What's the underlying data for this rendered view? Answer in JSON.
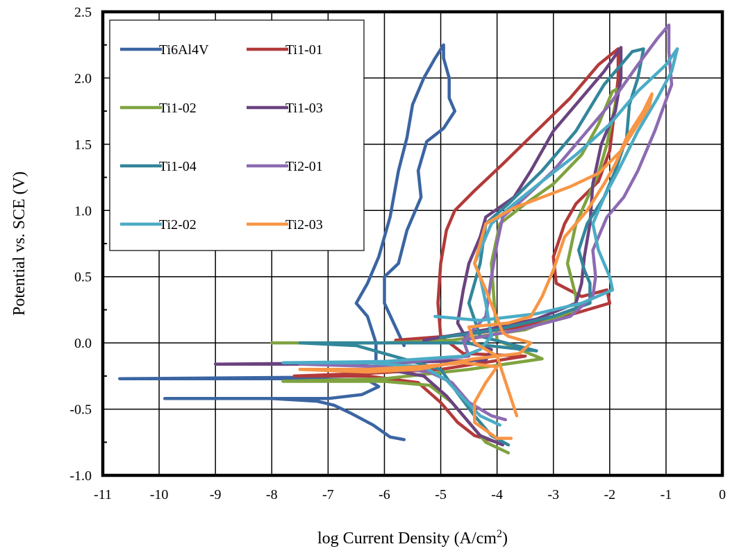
{
  "chart_data": {
    "type": "line",
    "title": "",
    "xlabel_main": "log Current Density (A/cm",
    "xlabel_sup": "2",
    "xlabel_tail": ")",
    "ylabel": "Potential vs. SCE (V)",
    "xlim": [
      -11,
      0
    ],
    "ylim": [
      -1.0,
      2.5
    ],
    "xticks": [
      "-11",
      "-10",
      "-9",
      "-8",
      "-7",
      "-6",
      "-5",
      "-4",
      "-3",
      "-2",
      "-1",
      "0"
    ],
    "yticks": [
      "-1.0",
      "-0.5",
      "0.0",
      "0.5",
      "1.0",
      "1.5",
      "2.0",
      "2.5"
    ],
    "grid": true,
    "legend_position": "top-left",
    "series": [
      {
        "name": "Ti6Al4V",
        "color": "#3b65a2",
        "points": [
          [
            -5.65,
            -0.73
          ],
          [
            -5.9,
            -0.71
          ],
          [
            -6.2,
            -0.62
          ],
          [
            -6.6,
            -0.53
          ],
          [
            -6.9,
            -0.47
          ],
          [
            -7.2,
            -0.44
          ],
          [
            -8.0,
            -0.42
          ],
          [
            -9.9,
            -0.42
          ],
          [
            -7.0,
            -0.42
          ],
          [
            -6.4,
            -0.39
          ],
          [
            -6.1,
            -0.33
          ],
          [
            -6.3,
            -0.28
          ],
          [
            -7.5,
            -0.27
          ],
          [
            -10.7,
            -0.27
          ],
          [
            -7.5,
            -0.26
          ],
          [
            -6.4,
            -0.24
          ],
          [
            -6.15,
            -0.18
          ],
          [
            -6.15,
            0.0
          ],
          [
            -6.3,
            0.2
          ],
          [
            -6.5,
            0.3
          ],
          [
            -6.3,
            0.45
          ],
          [
            -6.1,
            0.65
          ],
          [
            -5.9,
            0.95
          ],
          [
            -5.75,
            1.3
          ],
          [
            -5.6,
            1.55
          ],
          [
            -5.5,
            1.8
          ],
          [
            -5.3,
            2.0
          ],
          [
            -5.1,
            2.15
          ],
          [
            -4.95,
            2.25
          ],
          [
            -4.95,
            2.15
          ],
          [
            -4.85,
            2.0
          ],
          [
            -4.85,
            1.85
          ],
          [
            -4.75,
            1.75
          ],
          [
            -4.95,
            1.62
          ],
          [
            -5.25,
            1.52
          ],
          [
            -5.4,
            1.3
          ],
          [
            -5.35,
            1.1
          ],
          [
            -5.6,
            0.85
          ],
          [
            -5.75,
            0.6
          ],
          [
            -6.0,
            0.5
          ],
          [
            -6.0,
            0.3
          ],
          [
            -5.65,
            -0.02
          ]
        ]
      },
      {
        "name": "Ti1-01",
        "color": "#b33a3a",
        "points": [
          [
            -4.0,
            -0.75
          ],
          [
            -4.4,
            -0.7
          ],
          [
            -4.7,
            -0.6
          ],
          [
            -5.0,
            -0.45
          ],
          [
            -5.4,
            -0.3
          ],
          [
            -6.3,
            -0.25
          ],
          [
            -7.6,
            -0.25
          ],
          [
            -6.3,
            -0.23
          ],
          [
            -5.0,
            -0.2
          ],
          [
            -3.5,
            -0.1
          ],
          [
            -4.6,
            -0.08
          ],
          [
            -5.0,
            0.05
          ],
          [
            -5.05,
            0.3
          ],
          [
            -5.0,
            0.6
          ],
          [
            -4.9,
            0.85
          ],
          [
            -4.75,
            1.0
          ],
          [
            -4.4,
            1.15
          ],
          [
            -3.9,
            1.35
          ],
          [
            -3.3,
            1.6
          ],
          [
            -2.7,
            1.85
          ],
          [
            -2.2,
            2.1
          ],
          [
            -1.85,
            2.22
          ],
          [
            -1.85,
            2.0
          ],
          [
            -1.9,
            1.8
          ],
          [
            -2.0,
            1.45
          ],
          [
            -2.2,
            1.22
          ],
          [
            -2.6,
            1.05
          ],
          [
            -2.8,
            0.9
          ],
          [
            -3.0,
            0.65
          ],
          [
            -2.95,
            0.45
          ],
          [
            -2.5,
            0.35
          ],
          [
            -2.05,
            0.4
          ],
          [
            -2.0,
            0.3
          ],
          [
            -2.8,
            0.2
          ],
          [
            -3.6,
            0.12
          ],
          [
            -4.6,
            0.06
          ],
          [
            -5.8,
            0.02
          ]
        ]
      },
      {
        "name": "Ti1-02",
        "color": "#7fa33f",
        "points": [
          [
            -3.8,
            -0.83
          ],
          [
            -4.2,
            -0.75
          ],
          [
            -4.5,
            -0.6
          ],
          [
            -4.8,
            -0.45
          ],
          [
            -5.2,
            -0.32
          ],
          [
            -6.0,
            -0.29
          ],
          [
            -7.8,
            -0.29
          ],
          [
            -6.0,
            -0.27
          ],
          [
            -4.5,
            -0.2
          ],
          [
            -3.2,
            -0.12
          ],
          [
            -3.6,
            -0.05
          ],
          [
            -4.0,
            0.02
          ],
          [
            -4.05,
            0.3
          ],
          [
            -4.1,
            0.6
          ],
          [
            -3.95,
            0.9
          ],
          [
            -3.5,
            1.05
          ],
          [
            -3.0,
            1.2
          ],
          [
            -2.5,
            1.42
          ],
          [
            -2.2,
            1.65
          ],
          [
            -1.95,
            1.9
          ],
          [
            -1.85,
            1.92
          ],
          [
            -1.9,
            1.8
          ],
          [
            -2.05,
            1.5
          ],
          [
            -2.2,
            1.28
          ],
          [
            -2.6,
            0.9
          ],
          [
            -2.75,
            0.6
          ],
          [
            -2.6,
            0.35
          ],
          [
            -2.6,
            0.25
          ],
          [
            -3.5,
            0.1
          ],
          [
            -4.8,
            0.02
          ],
          [
            -6.0,
            0.0
          ],
          [
            -8.0,
            0.0
          ]
        ]
      },
      {
        "name": "Ti1-03",
        "color": "#6a437f",
        "points": [
          [
            -3.9,
            -0.77
          ],
          [
            -4.3,
            -0.7
          ],
          [
            -4.6,
            -0.55
          ],
          [
            -4.9,
            -0.4
          ],
          [
            -5.3,
            -0.25
          ],
          [
            -6.5,
            -0.16
          ],
          [
            -9.0,
            -0.16
          ],
          [
            -6.0,
            -0.15
          ],
          [
            -4.2,
            -0.13
          ],
          [
            -4.1,
            -0.05
          ],
          [
            -4.5,
            0.0
          ],
          [
            -4.7,
            0.15
          ],
          [
            -4.6,
            0.4
          ],
          [
            -4.5,
            0.6
          ],
          [
            -4.3,
            0.8
          ],
          [
            -4.2,
            0.95
          ],
          [
            -3.7,
            1.1
          ],
          [
            -3.4,
            1.3
          ],
          [
            -3.0,
            1.6
          ],
          [
            -2.5,
            1.85
          ],
          [
            -2.1,
            2.05
          ],
          [
            -1.8,
            2.23
          ],
          [
            -1.8,
            2.0
          ],
          [
            -1.9,
            1.75
          ],
          [
            -2.15,
            1.5
          ],
          [
            -2.3,
            1.2
          ],
          [
            -2.35,
            0.9
          ],
          [
            -2.45,
            0.65
          ],
          [
            -2.5,
            0.45
          ],
          [
            -2.6,
            0.3
          ],
          [
            -3.3,
            0.18
          ],
          [
            -4.2,
            0.1
          ],
          [
            -5.3,
            0.02
          ]
        ]
      },
      {
        "name": "Ti1-04",
        "color": "#32869a",
        "points": [
          [
            -3.8,
            -0.77
          ],
          [
            -4.1,
            -0.7
          ],
          [
            -4.4,
            -0.55
          ],
          [
            -4.7,
            -0.38
          ],
          [
            -5.0,
            -0.2
          ],
          [
            -6.5,
            -0.02
          ],
          [
            -7.5,
            0.0
          ],
          [
            -5.5,
            0.0
          ],
          [
            -4.6,
            0.0
          ],
          [
            -3.3,
            -0.06
          ],
          [
            -4.3,
            0.05
          ],
          [
            -4.5,
            0.3
          ],
          [
            -4.3,
            0.6
          ],
          [
            -4.2,
            0.9
          ],
          [
            -3.8,
            1.05
          ],
          [
            -3.2,
            1.3
          ],
          [
            -2.6,
            1.6
          ],
          [
            -2.1,
            1.95
          ],
          [
            -1.6,
            2.2
          ],
          [
            -1.4,
            2.22
          ],
          [
            -1.5,
            2.0
          ],
          [
            -1.65,
            1.8
          ],
          [
            -1.7,
            1.55
          ],
          [
            -1.9,
            1.3
          ],
          [
            -2.1,
            1.1
          ],
          [
            -2.4,
            0.9
          ],
          [
            -2.55,
            0.7
          ],
          [
            -2.45,
            0.55
          ],
          [
            -2.35,
            0.45
          ],
          [
            -2.35,
            0.3
          ],
          [
            -3.0,
            0.2
          ],
          [
            -4.0,
            0.1
          ],
          [
            -5.0,
            0.04
          ]
        ]
      },
      {
        "name": "Ti2-01",
        "color": "#8c6bb1",
        "points": [
          [
            -3.85,
            -0.58
          ],
          [
            -4.1,
            -0.55
          ],
          [
            -4.5,
            -0.45
          ],
          [
            -4.8,
            -0.3
          ],
          [
            -5.2,
            -0.22
          ],
          [
            -6.0,
            -0.18
          ],
          [
            -7.5,
            -0.16
          ],
          [
            -5.5,
            -0.14
          ],
          [
            -4.5,
            -0.1
          ],
          [
            -4.6,
            0.02
          ],
          [
            -4.2,
            0.2
          ],
          [
            -4.1,
            0.5
          ],
          [
            -4.0,
            0.75
          ],
          [
            -3.9,
            0.95
          ],
          [
            -3.5,
            1.1
          ],
          [
            -3.0,
            1.3
          ],
          [
            -2.5,
            1.55
          ],
          [
            -2.0,
            1.8
          ],
          [
            -1.5,
            2.1
          ],
          [
            -1.15,
            2.3
          ],
          [
            -0.95,
            2.4
          ],
          [
            -0.95,
            2.2
          ],
          [
            -0.9,
            1.95
          ],
          [
            -1.2,
            1.6
          ],
          [
            -1.5,
            1.3
          ],
          [
            -1.75,
            1.1
          ],
          [
            -2.05,
            0.95
          ],
          [
            -2.3,
            0.7
          ],
          [
            -2.25,
            0.5
          ],
          [
            -2.3,
            0.35
          ],
          [
            -2.7,
            0.2
          ],
          [
            -3.6,
            0.1
          ],
          [
            -4.6,
            0.02
          ]
        ]
      },
      {
        "name": "Ti2-02",
        "color": "#4bacc6",
        "points": [
          [
            -3.95,
            -0.62
          ],
          [
            -4.3,
            -0.55
          ],
          [
            -4.6,
            -0.42
          ],
          [
            -4.9,
            -0.28
          ],
          [
            -5.3,
            -0.18
          ],
          [
            -6.3,
            -0.15
          ],
          [
            -7.8,
            -0.15
          ],
          [
            -6.0,
            -0.14
          ],
          [
            -4.6,
            -0.1
          ],
          [
            -4.3,
            -0.05
          ],
          [
            -4.1,
            0.05
          ],
          [
            -4.2,
            0.3
          ],
          [
            -4.3,
            0.5
          ],
          [
            -4.4,
            0.6
          ],
          [
            -4.1,
            0.9
          ],
          [
            -3.7,
            1.05
          ],
          [
            -3.2,
            1.22
          ],
          [
            -2.6,
            1.42
          ],
          [
            -2.0,
            1.65
          ],
          [
            -1.5,
            1.9
          ],
          [
            -1.0,
            2.1
          ],
          [
            -0.8,
            2.22
          ],
          [
            -0.9,
            2.05
          ],
          [
            -1.15,
            1.85
          ],
          [
            -1.5,
            1.6
          ],
          [
            -1.85,
            1.3
          ],
          [
            -2.1,
            1.1
          ],
          [
            -2.3,
            0.9
          ],
          [
            -2.2,
            0.7
          ],
          [
            -2.0,
            0.5
          ],
          [
            -1.95,
            0.4
          ],
          [
            -2.5,
            0.3
          ],
          [
            -3.3,
            0.22
          ],
          [
            -4.3,
            0.17
          ],
          [
            -5.1,
            0.2
          ]
        ]
      },
      {
        "name": "Ti2-03",
        "color": "#f79646",
        "points": [
          [
            -3.75,
            -0.72
          ],
          [
            -4.0,
            -0.72
          ],
          [
            -4.4,
            -0.6
          ],
          [
            -4.4,
            -0.45
          ],
          [
            -4.2,
            -0.3
          ],
          [
            -4.0,
            -0.18
          ],
          [
            -4.6,
            -0.15
          ],
          [
            -5.4,
            -0.18
          ],
          [
            -6.3,
            -0.2
          ],
          [
            -7.5,
            -0.2
          ],
          [
            -6.3,
            -0.22
          ],
          [
            -5.4,
            -0.2
          ],
          [
            -4.4,
            -0.12
          ],
          [
            -3.6,
            -0.08
          ],
          [
            -3.4,
            0.0
          ],
          [
            -3.8,
            0.05
          ],
          [
            -3.9,
            0.08
          ],
          [
            -4.2,
            0.4
          ],
          [
            -4.4,
            0.6
          ],
          [
            -4.2,
            0.9
          ],
          [
            -3.7,
            1.02
          ],
          [
            -3.2,
            1.1
          ],
          [
            -2.7,
            1.18
          ],
          [
            -2.2,
            1.28
          ],
          [
            -1.8,
            1.45
          ],
          [
            -1.5,
            1.65
          ],
          [
            -1.3,
            1.78
          ],
          [
            -1.25,
            1.88
          ],
          [
            -1.4,
            1.75
          ],
          [
            -1.7,
            1.55
          ],
          [
            -1.9,
            1.35
          ],
          [
            -2.1,
            1.2
          ],
          [
            -2.4,
            1.0
          ],
          [
            -2.8,
            0.8
          ],
          [
            -3.0,
            0.55
          ],
          [
            -3.2,
            0.35
          ],
          [
            -3.4,
            0.2
          ],
          [
            -3.8,
            0.15
          ],
          [
            -4.5,
            0.12
          ],
          [
            -4.4,
            0.0
          ],
          [
            -4.0,
            -0.1
          ],
          [
            -3.65,
            -0.55
          ]
        ]
      }
    ]
  }
}
